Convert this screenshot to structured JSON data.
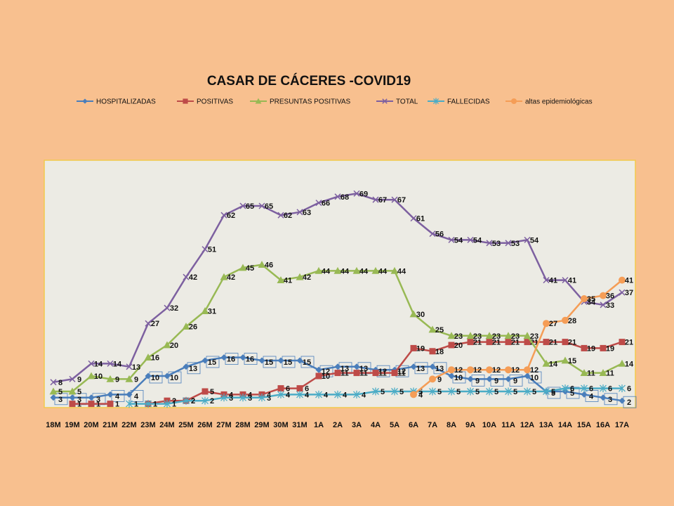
{
  "chart_data": {
    "type": "line",
    "title": "CASAR DE CÁCERES -COVID19",
    "xlabel": "",
    "ylabel": "",
    "ylim": [
      0,
      70
    ],
    "grid": false,
    "legend_position": "top",
    "plot_background": "#ecebe4",
    "plot_border": "#f2c94c",
    "categories": [
      "18M",
      "19M",
      "20M",
      "21M",
      "22M",
      "23M",
      "24M",
      "25M",
      "26M",
      "27M",
      "28M",
      "29M",
      "30M",
      "31M",
      "1A",
      "2A",
      "3A",
      "4A",
      "5A",
      "6A",
      "7A",
      "8A",
      "9A",
      "10A",
      "11A",
      "12A",
      "13A",
      "14A",
      "15A",
      "16A",
      "17A"
    ],
    "series": [
      {
        "name": "HOSPITALIZADAS",
        "color": "#4a7ebb",
        "marker": "diamond",
        "boxed_labels": true,
        "values": [
          3,
          3,
          3,
          4,
          4,
          10,
          10,
          13,
          15,
          16,
          16,
          15,
          15,
          15,
          12,
          13,
          13,
          12,
          12,
          13,
          13,
          10,
          9,
          9,
          9,
          10,
          5,
          5,
          4,
          3,
          2
        ]
      },
      {
        "name": "POSITIVAS",
        "color": "#be4b48",
        "marker": "square",
        "boxed_labels": false,
        "values": [
          null,
          1,
          1,
          1,
          null,
          1,
          2,
          2,
          5,
          4,
          4,
          4,
          6,
          6,
          10,
          11,
          11,
          11,
          11,
          19,
          18,
          20,
          21,
          21,
          21,
          21,
          21,
          21,
          19,
          19,
          21
        ]
      },
      {
        "name": "PRESUNTAS POSITIVAS",
        "color": "#98b954",
        "marker": "triangle",
        "boxed_labels": false,
        "values": [
          5,
          5,
          10,
          9,
          9,
          16,
          20,
          26,
          31,
          42,
          45,
          46,
          41,
          42,
          44,
          44,
          44,
          44,
          44,
          30,
          25,
          23,
          23,
          23,
          23,
          23,
          14,
          15,
          11,
          11,
          14
        ]
      },
      {
        "name": "TOTAL",
        "color": "#7d60a0",
        "marker": "x",
        "boxed_labels": false,
        "values": [
          8,
          9,
          14,
          14,
          13,
          27,
          32,
          42,
          51,
          62,
          65,
          65,
          62,
          63,
          66,
          68,
          69,
          67,
          67,
          61,
          56,
          54,
          54,
          53,
          53,
          54,
          41,
          41,
          34,
          33,
          37
        ]
      },
      {
        "name": "FALLECIDAS",
        "color": "#4bacc6",
        "marker": "star",
        "boxed_labels": false,
        "values": [
          null,
          null,
          null,
          null,
          1,
          1,
          1,
          2,
          2,
          3,
          3,
          3,
          4,
          4,
          4,
          4,
          4,
          5,
          5,
          5,
          5,
          5,
          5,
          5,
          5,
          5,
          5,
          6,
          6,
          6,
          6
        ]
      },
      {
        "name": "altas epidemiológicas",
        "color": "#f59d56",
        "marker": "circle",
        "boxed_labels": false,
        "values": [
          null,
          null,
          null,
          null,
          null,
          null,
          null,
          null,
          null,
          null,
          null,
          null,
          null,
          null,
          null,
          null,
          null,
          null,
          null,
          4,
          9,
          12,
          12,
          12,
          12,
          12,
          27,
          28,
          35,
          36,
          41
        ]
      }
    ]
  }
}
